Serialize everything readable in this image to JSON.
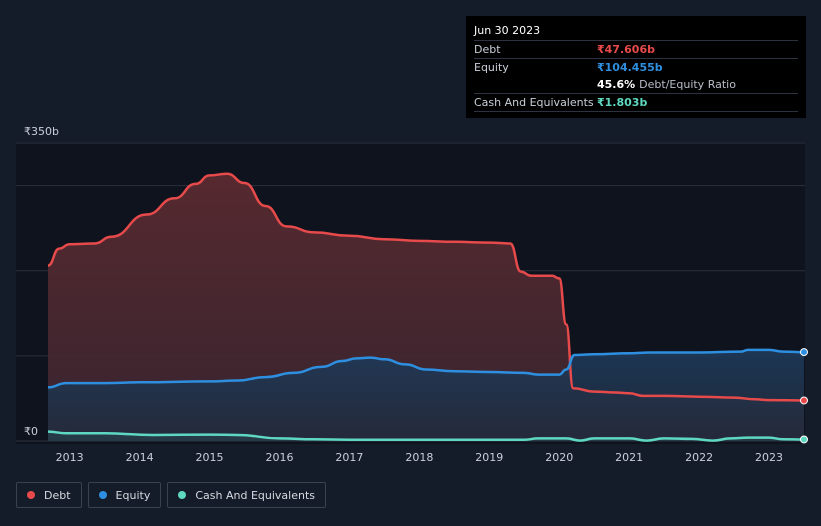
{
  "chart_data": {
    "type": "area",
    "y_axis": {
      "top_label": "₹350b",
      "bottom_label": "₹0",
      "ylim": [
        0,
        350
      ]
    },
    "x_ticks": [
      "2013",
      "2014",
      "2015",
      "2016",
      "2017",
      "2018",
      "2019",
      "2020",
      "2021",
      "2022",
      "2023"
    ],
    "x_range": [
      2012.69,
      2023.5
    ],
    "series": [
      {
        "name": "Debt",
        "color": "#e64a4a",
        "points": [
          [
            2012.69,
            206
          ],
          [
            2012.85,
            226
          ],
          [
            2013.0,
            231
          ],
          [
            2013.35,
            232
          ],
          [
            2013.6,
            240
          ],
          [
            2014.1,
            266
          ],
          [
            2014.5,
            285
          ],
          [
            2014.8,
            302
          ],
          [
            2015.0,
            312
          ],
          [
            2015.25,
            314
          ],
          [
            2015.5,
            303
          ],
          [
            2015.8,
            276
          ],
          [
            2016.1,
            252
          ],
          [
            2016.5,
            245
          ],
          [
            2017.0,
            241
          ],
          [
            2017.5,
            237
          ],
          [
            2018.0,
            235
          ],
          [
            2018.5,
            234
          ],
          [
            2019.0,
            233
          ],
          [
            2019.3,
            232
          ],
          [
            2019.45,
            199
          ],
          [
            2019.6,
            194
          ],
          [
            2019.9,
            194
          ],
          [
            2020.0,
            191
          ],
          [
            2020.1,
            137
          ],
          [
            2020.2,
            62
          ],
          [
            2020.5,
            58
          ],
          [
            2020.8,
            57
          ],
          [
            2021.0,
            56
          ],
          [
            2021.2,
            53
          ],
          [
            2021.5,
            53
          ],
          [
            2022.0,
            52
          ],
          [
            2022.5,
            51
          ],
          [
            2022.8,
            49
          ],
          [
            2023.0,
            48
          ],
          [
            2023.5,
            47.606
          ]
        ]
      },
      {
        "name": "Equity",
        "color": "#2e8fe0",
        "points": [
          [
            2012.69,
            63
          ],
          [
            2012.95,
            68
          ],
          [
            2013.5,
            68
          ],
          [
            2014.0,
            69
          ],
          [
            2015.0,
            70
          ],
          [
            2015.4,
            71
          ],
          [
            2015.8,
            75
          ],
          [
            2016.2,
            80
          ],
          [
            2016.6,
            87
          ],
          [
            2016.9,
            94
          ],
          [
            2017.1,
            97
          ],
          [
            2017.3,
            98
          ],
          [
            2017.5,
            96
          ],
          [
            2017.8,
            90
          ],
          [
            2018.1,
            84
          ],
          [
            2018.5,
            82
          ],
          [
            2019.0,
            81
          ],
          [
            2019.5,
            80
          ],
          [
            2019.7,
            78
          ],
          [
            2020.0,
            78
          ],
          [
            2020.1,
            84
          ],
          [
            2020.22,
            101
          ],
          [
            2020.5,
            102
          ],
          [
            2021.0,
            103
          ],
          [
            2021.3,
            104
          ],
          [
            2022.0,
            104
          ],
          [
            2022.6,
            105
          ],
          [
            2022.7,
            107
          ],
          [
            2023.0,
            107
          ],
          [
            2023.2,
            105
          ],
          [
            2023.5,
            104.455
          ]
        ]
      },
      {
        "name": "Cash And Equivalents",
        "color": "#5ed8c0",
        "points": [
          [
            2012.69,
            11
          ],
          [
            2012.95,
            9
          ],
          [
            2013.5,
            9
          ],
          [
            2014.2,
            7
          ],
          [
            2015.0,
            7.5
          ],
          [
            2015.4,
            7
          ],
          [
            2016.0,
            3
          ],
          [
            2016.5,
            2
          ],
          [
            2017.0,
            1.5
          ],
          [
            2019.0,
            1.5
          ],
          [
            2019.5,
            1.5
          ],
          [
            2019.7,
            3
          ],
          [
            2020.1,
            3
          ],
          [
            2020.3,
            0.5
          ],
          [
            2020.5,
            3
          ],
          [
            2020.9,
            3
          ],
          [
            2021.0,
            3
          ],
          [
            2021.25,
            0.5
          ],
          [
            2021.5,
            3
          ],
          [
            2021.9,
            2.5
          ],
          [
            2022.2,
            0.5
          ],
          [
            2022.45,
            3
          ],
          [
            2022.7,
            4
          ],
          [
            2023.0,
            4
          ],
          [
            2023.2,
            2
          ],
          [
            2023.5,
            1.803
          ]
        ]
      }
    ]
  },
  "tooltip": {
    "date": "Jun 30 2023",
    "debt_label": "Debt",
    "debt_value": "₹47.606b",
    "equity_label": "Equity",
    "equity_value": "₹104.455b",
    "ratio_value": "45.6%",
    "ratio_label": "Debt/Equity Ratio",
    "cash_label": "Cash And Equivalents",
    "cash_value": "₹1.803b"
  },
  "legend": {
    "debt": "Debt",
    "equity": "Equity",
    "cash": "Cash And Equivalents"
  },
  "colors": {
    "background": "#151c29",
    "plot_background": "#0e131d",
    "grid": "#2a313e",
    "debt": "#e64a4a",
    "equity": "#2e8fe0",
    "cash": "#5ed8c0"
  }
}
